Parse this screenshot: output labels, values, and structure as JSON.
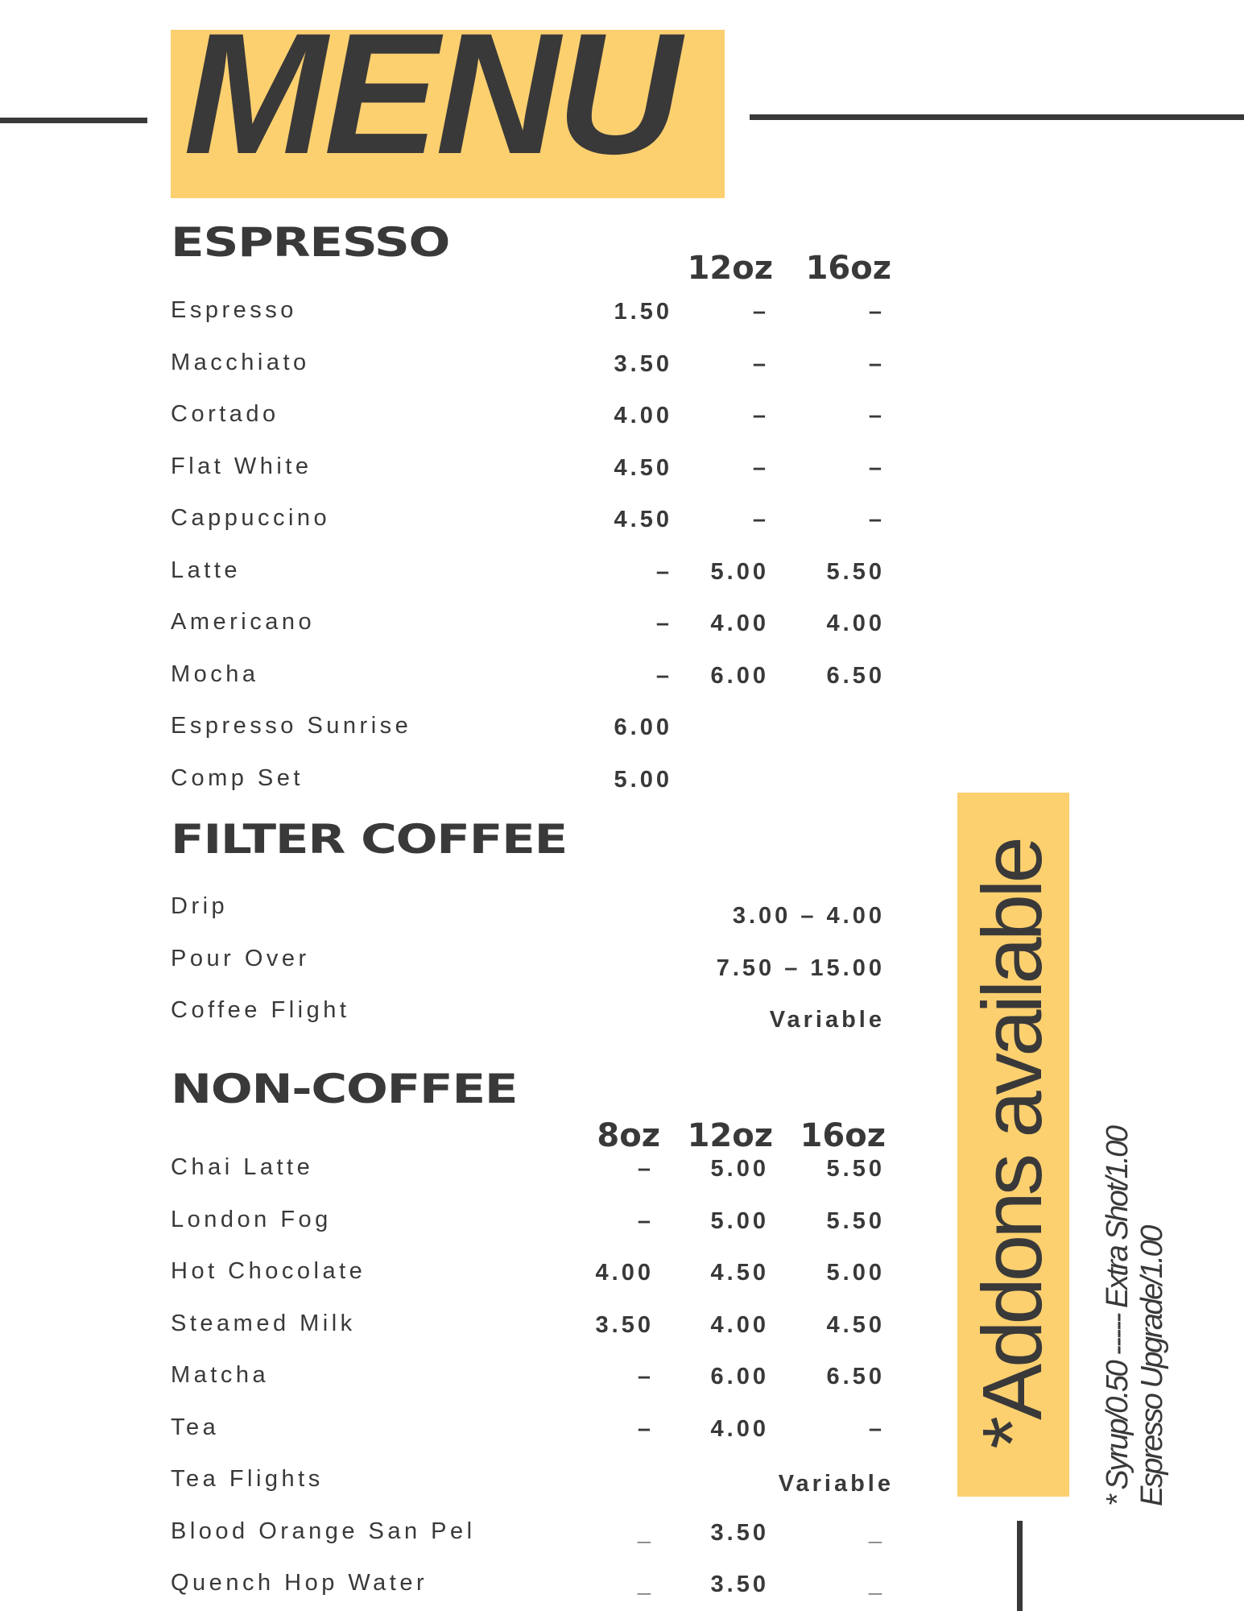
{
  "title": "MENU",
  "colors": {
    "accent": "#fcd06f",
    "text": "#3a3939"
  },
  "espresso": {
    "heading": "ESPRESSO",
    "sizes": [
      "12oz",
      "16oz"
    ],
    "items": [
      {
        "name": "Espresso",
        "prices": [
          "1.50",
          "–",
          "–"
        ]
      },
      {
        "name": "Macchiato",
        "prices": [
          "3.50",
          "–",
          "–"
        ]
      },
      {
        "name": "Cortado",
        "prices": [
          "4.00",
          "–",
          "–"
        ]
      },
      {
        "name": "Flat White",
        "prices": [
          "4.50",
          "–",
          "–"
        ]
      },
      {
        "name": "Cappuccino",
        "prices": [
          "4.50",
          "–",
          "–"
        ]
      },
      {
        "name": "Latte",
        "prices": [
          "–",
          "5.00",
          "5.50"
        ]
      },
      {
        "name": "Americano",
        "prices": [
          "–",
          "4.00",
          "4.00"
        ]
      },
      {
        "name": "Mocha",
        "prices": [
          "–",
          "6.00",
          "6.50"
        ]
      },
      {
        "name": "Espresso Sunrise",
        "prices": [
          "6.00",
          "",
          ""
        ]
      },
      {
        "name": "Comp Set",
        "prices": [
          "5.00",
          "",
          ""
        ]
      }
    ]
  },
  "filter": {
    "heading": "FILTER COFFEE",
    "items": [
      {
        "name": "Drip",
        "price": "3.00 – 4.00"
      },
      {
        "name": "Pour Over",
        "price": "7.50 – 15.00"
      },
      {
        "name": "Coffee Flight",
        "price": "Variable"
      }
    ]
  },
  "noncoffee": {
    "heading": "NON-COFFEE",
    "sizes": [
      "8oz",
      "12oz",
      "16oz"
    ],
    "items": [
      {
        "name": "Chai Latte",
        "prices": [
          "–",
          "5.00",
          "5.50"
        ]
      },
      {
        "name": "London Fog",
        "prices": [
          "–",
          "5.00",
          "5.50"
        ]
      },
      {
        "name": "Hot Chocolate",
        "prices": [
          "4.00",
          "4.50",
          "5.00"
        ]
      },
      {
        "name": "Steamed Milk",
        "prices": [
          "3.50",
          "4.00",
          "4.50"
        ]
      },
      {
        "name": "Matcha",
        "prices": [
          "–",
          "6.00",
          "6.50"
        ]
      },
      {
        "name": "Tea",
        "prices": [
          "–",
          "4.00",
          "–"
        ]
      },
      {
        "name": "Tea Flights",
        "prices": [
          "",
          "",
          ""
        ],
        "note": "Variable"
      },
      {
        "name": "Blood Orange San Pel",
        "prices": [
          "_",
          "3.50",
          "_"
        ]
      },
      {
        "name": "Quench Hop Water",
        "prices": [
          "_",
          "3.50",
          "_"
        ]
      }
    ]
  },
  "addons": {
    "label": "*Addons available",
    "line1": "* Syrup/0.50 ----- Extra Shot/1.00",
    "line2": "Espresso Upgrade/1.00"
  }
}
